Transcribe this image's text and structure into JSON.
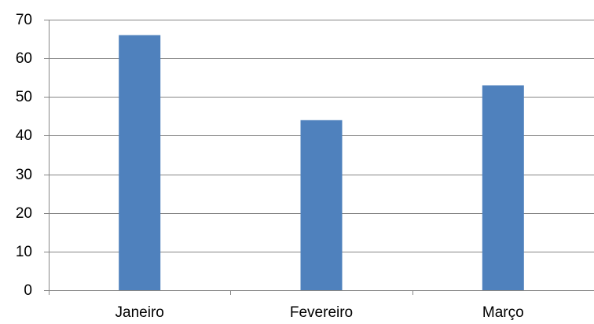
{
  "chart_data": {
    "type": "bar",
    "categories": [
      "Janeiro",
      "Fevereiro",
      "Março"
    ],
    "values": [
      66,
      44,
      53
    ],
    "ylim": [
      0,
      70
    ],
    "yticks": [
      0,
      10,
      20,
      30,
      40,
      50,
      60,
      70
    ],
    "grid": true,
    "legend": "none",
    "title": "",
    "xlabel": "",
    "ylabel": "",
    "colors": {
      "bar": "#4F81BD",
      "grid": "#868686",
      "axis": "#868686",
      "text": "#000000"
    }
  }
}
